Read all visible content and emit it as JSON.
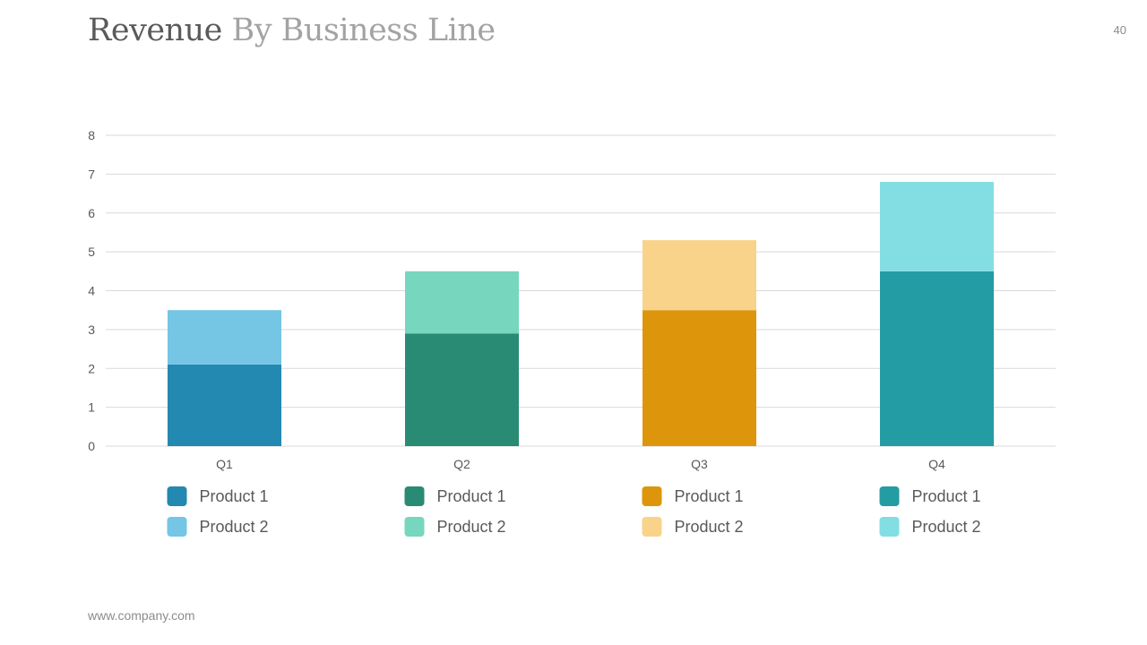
{
  "slide": {
    "title_main": "Revenue",
    "title_rest": "By Business Line",
    "page_number": "40",
    "footer_url": "www.company.com"
  },
  "chart_data": {
    "type": "bar",
    "stacked": true,
    "categories": [
      "Q1",
      "Q2",
      "Q3",
      "Q4"
    ],
    "series": [
      {
        "name": "Product 1",
        "values": [
          2.1,
          2.9,
          3.5,
          4.5
        ]
      },
      {
        "name": "Product 2",
        "values": [
          1.4,
          1.6,
          1.8,
          2.3
        ]
      }
    ],
    "ylim": [
      0,
      8
    ],
    "yticks": [
      "0",
      "1",
      "2",
      "3",
      "4",
      "5",
      "6",
      "7",
      "8"
    ],
    "grid": true,
    "legend_placement": "bottom, per category",
    "colors": {
      "Q1": {
        "Product 1": "#2389b0",
        "Product 2": "#74c6e4"
      },
      "Q2": {
        "Product 1": "#2a8b74",
        "Product 2": "#77d6be"
      },
      "Q3": {
        "Product 1": "#dd960b",
        "Product 2": "#f9d389"
      },
      "Q4": {
        "Product 1": "#249ca3",
        "Product 2": "#83dee4"
      }
    },
    "text_color": "#595959",
    "grid_color": "#d9d9d9"
  }
}
